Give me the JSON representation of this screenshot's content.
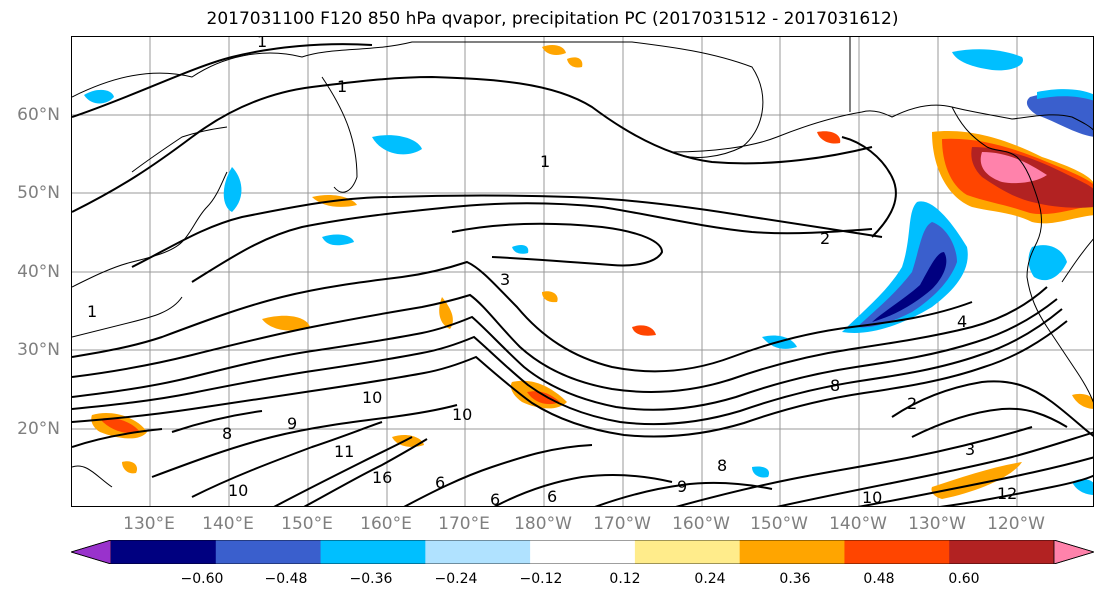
{
  "title": "2017031100 F120 850 hPa qvapor, precipitation PC (2017031512 - 2017031612)",
  "lat_labels": [
    "60°N",
    "50°N",
    "40°N",
    "30°N",
    "20°N"
  ],
  "lon_labels": [
    "130°E",
    "140°E",
    "150°E",
    "160°E",
    "170°E",
    "180°W",
    "170°W",
    "160°W",
    "150°W",
    "140°W",
    "130°W",
    "120°W"
  ],
  "colorbar": {
    "tick_labels": [
      "−0.60",
      "−0.48",
      "−0.36",
      "−0.24",
      "−0.12",
      "0.12",
      "0.24",
      "0.36",
      "0.48",
      "0.60"
    ],
    "colors": [
      "#9932cc",
      "#000080",
      "#3a5fcd",
      "#00bfff",
      "#b0e2ff",
      "#ffffff",
      "#ffec8b",
      "#ffa500",
      "#ff4500",
      "#b22222",
      "#ff82ab"
    ]
  },
  "contour_labels": [
    "1",
    "1",
    "1",
    "1",
    "2",
    "2",
    "3",
    "3",
    "4",
    "6",
    "6",
    "6",
    "8",
    "8",
    "8",
    "9",
    "9",
    "10",
    "10",
    "10",
    "10",
    "11",
    "12",
    "16"
  ]
}
